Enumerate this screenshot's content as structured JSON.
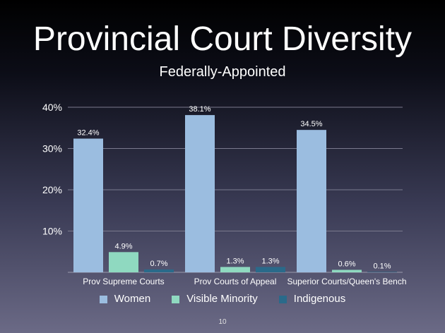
{
  "slide": {
    "title": "Provincial Court Diversity",
    "subtitle": "Federally-Appointed",
    "page_number": "10"
  },
  "chart_data": {
    "type": "bar",
    "categories": [
      "Prov Supreme Courts",
      "Prov Courts of Appeal",
      "Superior Courts/Queen's Bench"
    ],
    "series": [
      {
        "name": "Women",
        "color": "#9bbde0",
        "values": [
          32.4,
          38.1,
          34.5
        ],
        "labels": [
          "32.4%",
          "38.1%",
          "34.5%"
        ]
      },
      {
        "name": "Visible Minority",
        "color": "#8fd9c0",
        "values": [
          4.9,
          1.3,
          0.6
        ],
        "labels": [
          "4.9%",
          "1.3%",
          "0.6%"
        ]
      },
      {
        "name": "Indigenous",
        "color": "#2a6a8a",
        "values": [
          0.7,
          1.3,
          0.1
        ],
        "labels": [
          "0.7%",
          "1.3%",
          "0.1%"
        ]
      }
    ],
    "ylim": [
      0,
      40
    ],
    "yticks": [
      10,
      20,
      30,
      40
    ],
    "ytick_labels": [
      "10%",
      "20%",
      "30%",
      "40%"
    ],
    "grid": true,
    "legend": "bottom"
  }
}
